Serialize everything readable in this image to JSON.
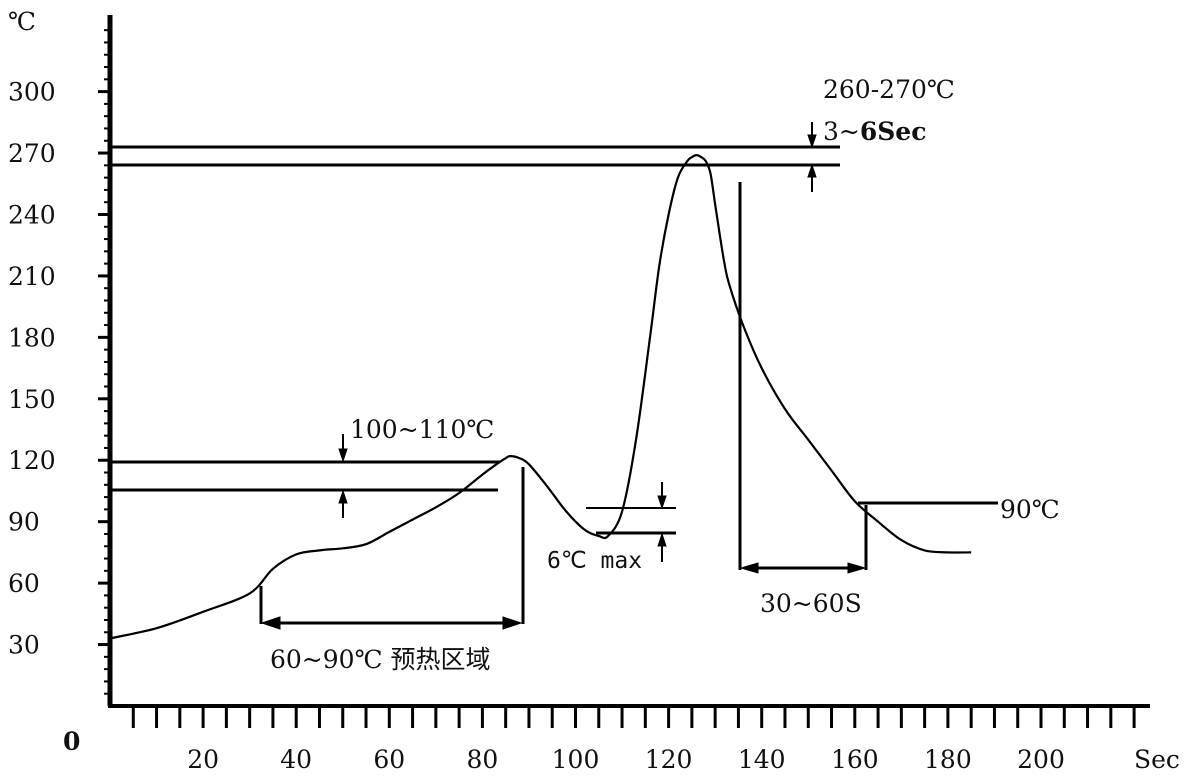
{
  "chart_data": {
    "type": "line",
    "title": "",
    "xlabel": "Sec",
    "ylabel": "℃",
    "origin_label": "0",
    "xlim": [
      0,
      220
    ],
    "ylim": [
      0,
      330
    ],
    "x_ticks": [
      20,
      40,
      60,
      80,
      100,
      120,
      140,
      160,
      180,
      200
    ],
    "y_ticks": [
      30,
      60,
      90,
      120,
      150,
      180,
      210,
      240,
      270,
      300
    ],
    "grid": false,
    "legend": "none",
    "series": [
      {
        "x": [
          0,
          10,
          20,
          30,
          35,
          40,
          45,
          50,
          55,
          60,
          65,
          70,
          75,
          80,
          83,
          85,
          86,
          88,
          90,
          94,
          98,
          102,
          105,
          107,
          110,
          113,
          116,
          118,
          120,
          122,
          124,
          125,
          126,
          127,
          128,
          129,
          130,
          131,
          132,
          133,
          136,
          140,
          145,
          150,
          155,
          160,
          165,
          170,
          175,
          180,
          185
        ],
        "y": [
          33,
          38,
          46,
          55,
          67,
          74,
          76,
          77,
          79,
          85,
          91,
          97,
          104,
          113,
          118,
          121,
          122,
          121,
          118,
          107,
          95,
          86,
          83,
          83,
          95,
          130,
          180,
          215,
          240,
          258,
          266,
          268,
          269,
          268,
          266,
          260,
          245,
          230,
          216,
          206,
          186,
          165,
          145,
          130,
          115,
          100,
          90,
          81,
          76,
          75,
          75
        ]
      }
    ],
    "annotations": {
      "preheat_label": "60~90℃ 预热区域",
      "preheat_band_label": "100~110℃",
      "dip_label": "6℃ max",
      "peak_temp_label": "260-270℃",
      "peak_time_prefix": "3~",
      "peak_time_bold": "6Sec",
      "cooling_time_label": "30~60S",
      "cooling_temp_label": "90℃"
    }
  }
}
